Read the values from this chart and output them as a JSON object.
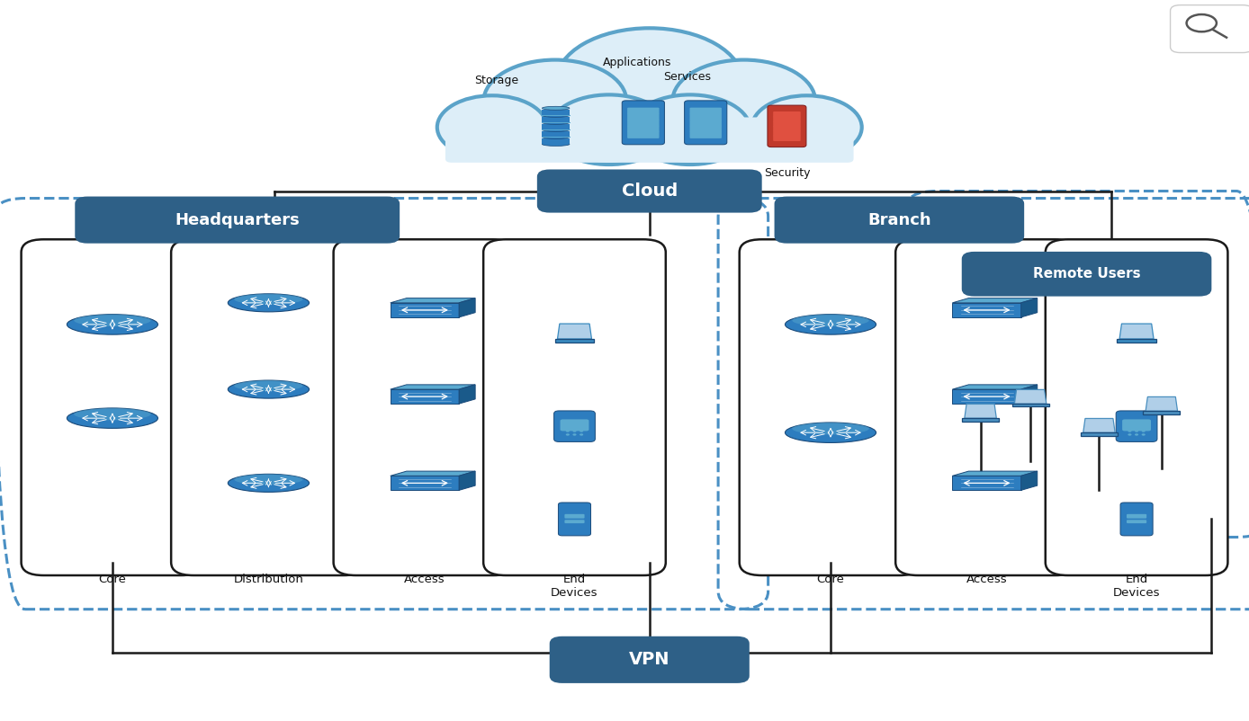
{
  "bg_color": "#ffffff",
  "cloud_fill": "#ddeef8",
  "cloud_border": "#5ba3c9",
  "label_bg": "#2e6087",
  "label_fg": "#ffffff",
  "col_box_bg": "#ffffff",
  "col_box_border": "#1a1a1a",
  "dashed_color": "#4a90c4",
  "line_color": "#1a1a1a",
  "icon_blue": "#2d7dbf",
  "icon_blue2": "#3a8fd0",
  "icon_dark": "#1a4a7a",
  "icon_light": "#7ab8d9",
  "icon_red": "#c0392b",
  "icon_red2": "#e05040",
  "vpn_bg": "#2e6087",
  "vpn_fg": "#ffffff",
  "cloud_label": "Cloud",
  "hq_label": "Headquarters",
  "branch_label": "Branch",
  "remote_label": "Remote Users",
  "vpn_label": "VPN",
  "hq_cols": [
    "Core",
    "Distribution",
    "Access",
    "End\nDevices"
  ],
  "branch_cols": [
    "Core",
    "Access",
    "End\nDevices"
  ],
  "fig_w": 13.88,
  "fig_h": 8.02,
  "dpi": 100
}
